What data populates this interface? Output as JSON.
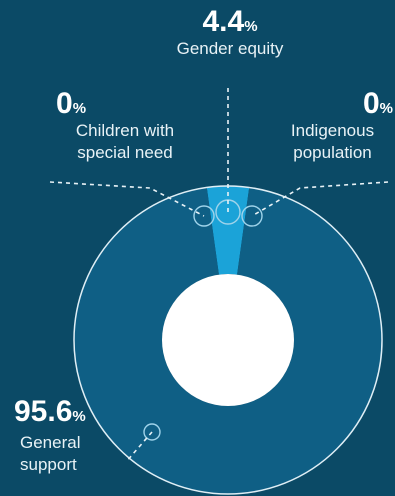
{
  "chart_data": {
    "type": "pie",
    "slices": [
      {
        "label_lines": [
          "Gender equity"
        ],
        "value": 4.4,
        "value_text": "4.4",
        "unit": "%",
        "color": "#1ba3d8"
      },
      {
        "label_lines": [
          "Children with",
          "special need"
        ],
        "value": 0,
        "value_text": "0",
        "unit": "%",
        "color": "#1ba3d8"
      },
      {
        "label_lines": [
          "Indigenous",
          "population"
        ],
        "value": 0,
        "value_text": "0",
        "unit": "%",
        "color": "#1ba3d8"
      },
      {
        "label_lines": [
          "General",
          "support"
        ],
        "value": 95.6,
        "value_text": "95.6",
        "unit": "%",
        "color": "#0f5f85"
      }
    ]
  },
  "colors": {
    "background": "#0b4a66",
    "ring_main": "#0f5f85",
    "highlight": "#1ba3d8",
    "outline": "#dfeef5",
    "center": "#ffffff"
  }
}
